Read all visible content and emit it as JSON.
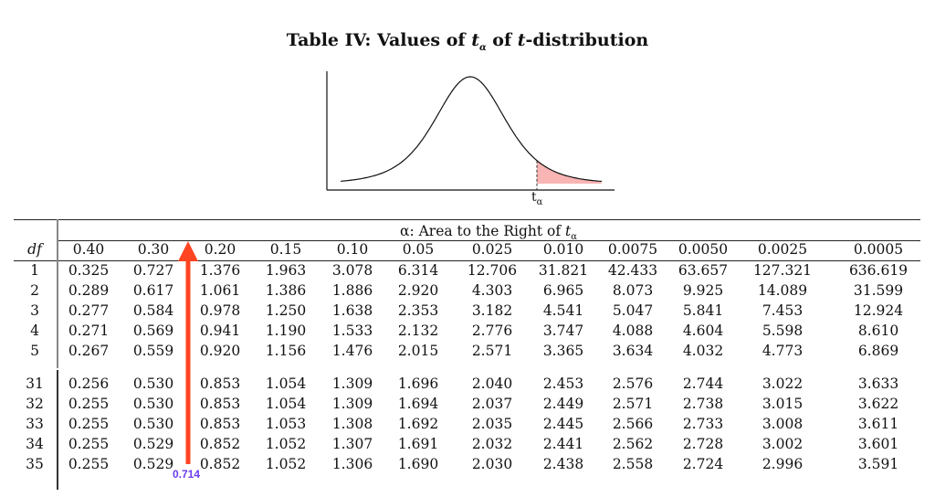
{
  "title": {
    "prefix": "Table IV: Values of ",
    "t": "t",
    "alpha": "α",
    "middle": " of ",
    "suffix": "-distribution"
  },
  "figure": {
    "type": "t-distribution density curve",
    "shaded_region": "right tail",
    "shade_color": "#f9b4b4",
    "tick_label_t": "t",
    "tick_label_sub": "α"
  },
  "table": {
    "super_header": {
      "prefix": "α: Area to the Right of ",
      "t": "t",
      "sub": "α"
    },
    "df_label": "df",
    "alphas": [
      "0.40",
      "0.30",
      "0.20",
      "0.15",
      "0.10",
      "0.05",
      "0.025",
      "0.010",
      "0.0075",
      "0.0050",
      "0.0025",
      "0.0005"
    ],
    "blocks": [
      [
        {
          "df": "1",
          "values": [
            "0.325",
            "0.727",
            "1.376",
            "1.963",
            "3.078",
            "6.314",
            "12.706",
            "31.821",
            "42.433",
            "63.657",
            "127.321",
            "636.619"
          ]
        },
        {
          "df": "2",
          "values": [
            "0.289",
            "0.617",
            "1.061",
            "1.386",
            "1.886",
            "2.920",
            "4.303",
            "6.965",
            "8.073",
            "9.925",
            "14.089",
            "31.599"
          ]
        },
        {
          "df": "3",
          "values": [
            "0.277",
            "0.584",
            "0.978",
            "1.250",
            "1.638",
            "2.353",
            "3.182",
            "4.541",
            "5.047",
            "5.841",
            "7.453",
            "12.924"
          ]
        },
        {
          "df": "4",
          "values": [
            "0.271",
            "0.569",
            "0.941",
            "1.190",
            "1.533",
            "2.132",
            "2.776",
            "3.747",
            "4.088",
            "4.604",
            "5.598",
            "8.610"
          ]
        },
        {
          "df": "5",
          "values": [
            "0.267",
            "0.559",
            "0.920",
            "1.156",
            "1.476",
            "2.015",
            "2.571",
            "3.365",
            "3.634",
            "4.032",
            "4.773",
            "6.869"
          ]
        }
      ],
      [
        {
          "df": "31",
          "values": [
            "0.256",
            "0.530",
            "0.853",
            "1.054",
            "1.309",
            "1.696",
            "2.040",
            "2.453",
            "2.576",
            "2.744",
            "3.022",
            "3.633"
          ]
        },
        {
          "df": "32",
          "values": [
            "0.255",
            "0.530",
            "0.853",
            "1.054",
            "1.309",
            "1.694",
            "2.037",
            "2.449",
            "2.571",
            "2.738",
            "3.015",
            "3.622"
          ]
        },
        {
          "df": "33",
          "values": [
            "0.255",
            "0.530",
            "0.853",
            "1.053",
            "1.308",
            "1.692",
            "2.035",
            "2.445",
            "2.566",
            "2.733",
            "3.008",
            "3.611"
          ]
        },
        {
          "df": "34",
          "values": [
            "0.255",
            "0.529",
            "0.852",
            "1.052",
            "1.307",
            "1.691",
            "2.032",
            "2.441",
            "2.562",
            "2.728",
            "3.002",
            "3.601"
          ]
        },
        {
          "df": "35",
          "values": [
            "0.255",
            "0.529",
            "0.852",
            "1.052",
            "1.306",
            "1.690",
            "2.030",
            "2.438",
            "2.558",
            "2.724",
            "2.996",
            "3.591"
          ]
        }
      ]
    ]
  },
  "annotation": {
    "arrow_color": "#ff4422",
    "label": "0.714",
    "label_color": "#6a3df0"
  }
}
